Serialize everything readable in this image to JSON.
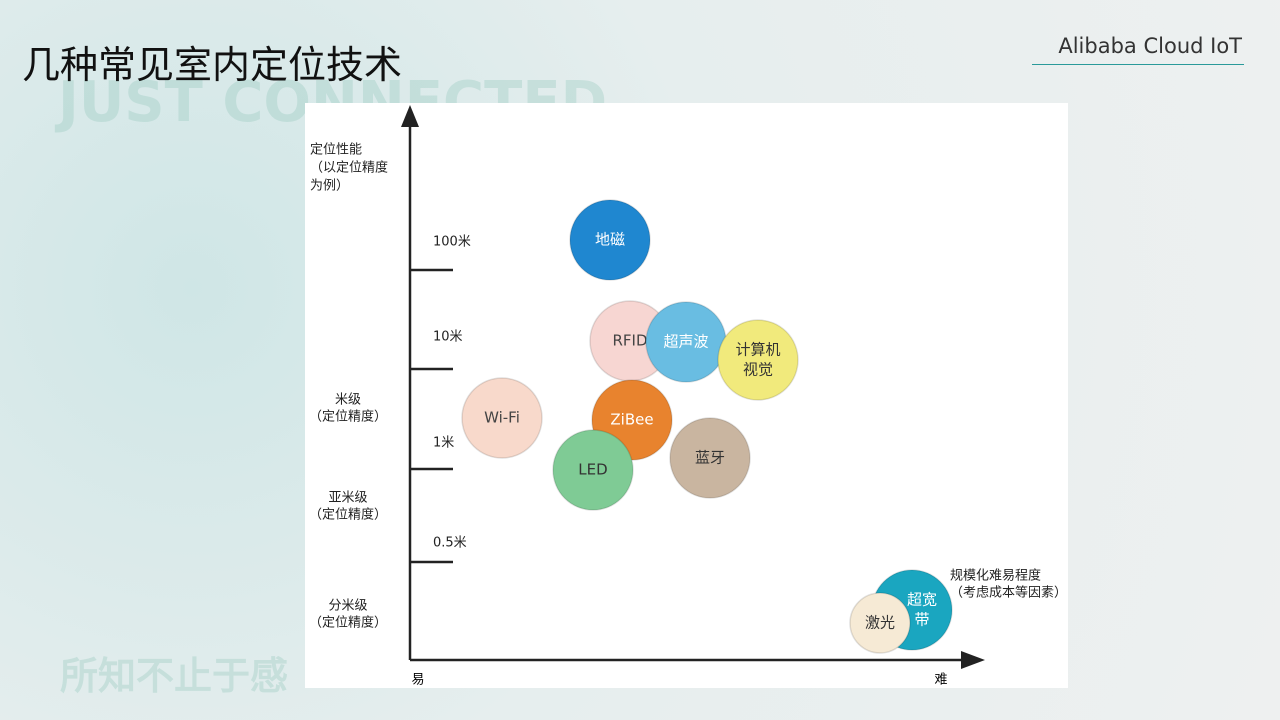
{
  "header": {
    "title": "几种常见室内定位技术",
    "brand": "Alibaba Cloud IoT"
  },
  "background_texts": [
    "JUST CONNECTED",
    "所知不止于感"
  ],
  "diagram": {
    "y_axis_title": [
      "定位性能",
      "（以定位精度",
      "为例）"
    ],
    "y_levels": [
      [
        "米级",
        "（定位精度）"
      ],
      [
        "亚米级",
        "（定位精度）"
      ],
      [
        "分米级",
        "（定位精度）"
      ]
    ],
    "y_ticks": [
      "100米",
      "10米",
      "1米",
      "0.5米"
    ],
    "x_axis_title": [
      "规模化难易程度",
      "（考虑成本等因素）"
    ],
    "x_ends": [
      "易",
      "难"
    ],
    "nodes": [
      {
        "label": [
          "地磁"
        ]
      },
      {
        "label": [
          "RFID"
        ]
      },
      {
        "label": [
          "超声波"
        ]
      },
      {
        "label": [
          "计算机",
          "视觉"
        ]
      },
      {
        "label": [
          "Wi-Fi"
        ]
      },
      {
        "label": [
          "ZiBee"
        ]
      },
      {
        "label": [
          "LED"
        ]
      },
      {
        "label": [
          "蓝牙"
        ]
      },
      {
        "label": [
          "超宽",
          "带"
        ]
      },
      {
        "label": [
          "激光"
        ]
      }
    ]
  }
}
